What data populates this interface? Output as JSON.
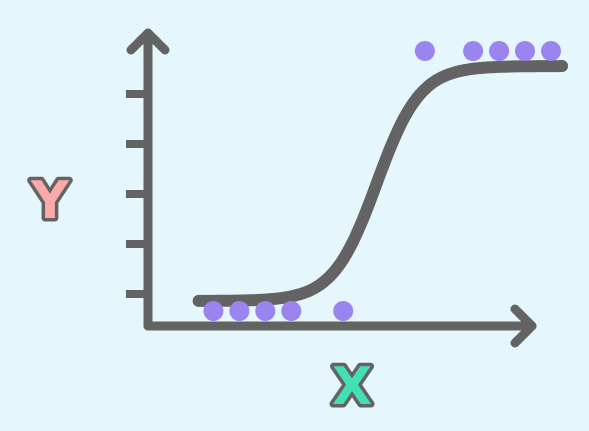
{
  "chart_data": {
    "type": "scatter",
    "xlabel": "X",
    "ylabel": "Y",
    "xlim": [
      0,
      10
    ],
    "ylim": [
      0,
      6
    ],
    "grid": false,
    "points": [
      {
        "x": 0.9,
        "y": 0.3
      },
      {
        "x": 1.6,
        "y": 0.3
      },
      {
        "x": 2.3,
        "y": 0.3
      },
      {
        "x": 3.0,
        "y": 0.3
      },
      {
        "x": 4.4,
        "y": 0.3
      },
      {
        "x": 6.6,
        "y": 5.5
      },
      {
        "x": 7.9,
        "y": 5.5
      },
      {
        "x": 8.6,
        "y": 5.5
      },
      {
        "x": 9.3,
        "y": 5.5
      },
      {
        "x": 10.0,
        "y": 5.5
      }
    ],
    "fit_curve": {
      "type": "logistic",
      "lower": 0.5,
      "upper": 5.2,
      "midpoint": 5.3,
      "steepness": 1.7,
      "x_range": [
        0.5,
        10.3
      ]
    },
    "y_ticks": [
      1,
      2,
      3,
      4,
      5
    ],
    "colors": {
      "background": "#e6f6fd",
      "axis": "#636363",
      "points": "#9c84f0",
      "xlabel": "#43e0b8",
      "ylabel": "#fbaaa9"
    }
  }
}
